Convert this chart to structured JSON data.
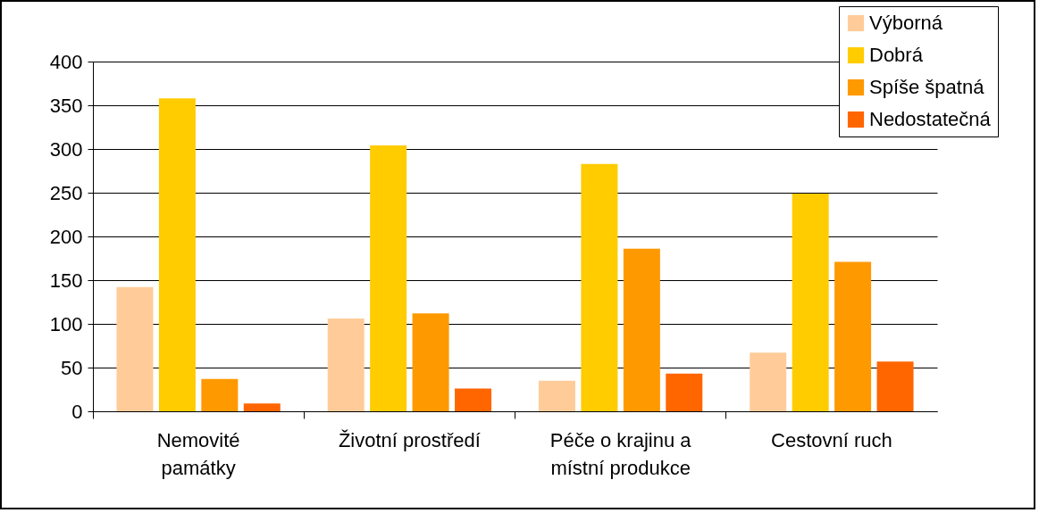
{
  "chart_data": {
    "type": "bar",
    "categories": [
      "Nemovité památky",
      "Životní prostředí",
      "Péče o krajinu a místní produkce",
      "Cestovní ruch"
    ],
    "series": [
      {
        "name": "Výborná",
        "color": "#ffcc99",
        "values": [
          142,
          106,
          35,
          67
        ]
      },
      {
        "name": "Dobrá",
        "color": "#ffcc00",
        "values": [
          358,
          304,
          283,
          249
        ]
      },
      {
        "name": "Spíše špatná",
        "color": "#ff9900",
        "values": [
          37,
          112,
          186,
          171
        ]
      },
      {
        "name": "Nedostatečná",
        "color": "#ff6600",
        "values": [
          9,
          26,
          43,
          57
        ]
      }
    ],
    "ylim": [
      0,
      400
    ],
    "yticks": [
      0,
      50,
      100,
      150,
      200,
      250,
      300,
      350,
      400
    ],
    "grid": "y",
    "legend": "top right"
  }
}
